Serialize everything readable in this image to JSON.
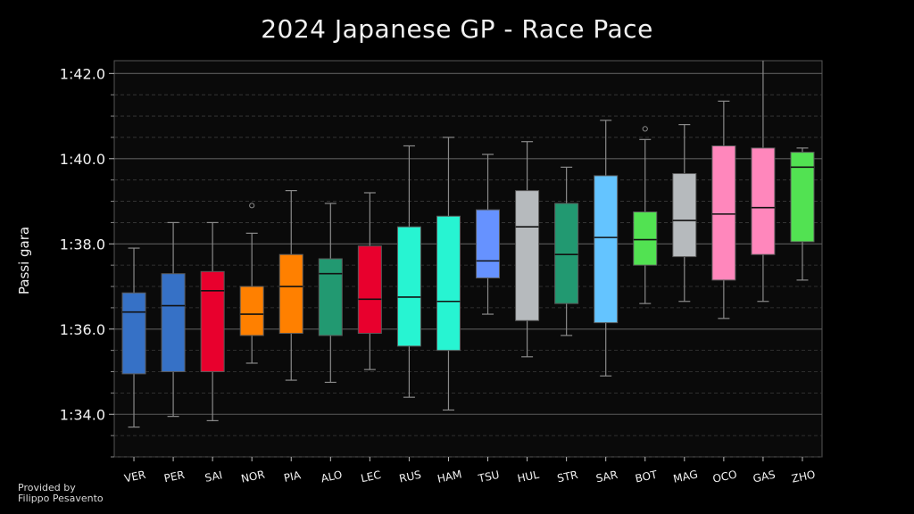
{
  "credit": {
    "line1": "Provided by",
    "line2": "Filippo Pesavento"
  },
  "chart_data": {
    "type": "box",
    "title": "2024 Japanese GP - Race Pace",
    "ylabel": "Passi gara",
    "xlabel": "",
    "ylim": [
      93.0,
      102.3
    ],
    "yticks": [
      94,
      96,
      98,
      100,
      102
    ],
    "ytick_labels": [
      "1:34.0",
      "1:36.0",
      "1:38.0",
      "1:40.0",
      "1:42.0"
    ],
    "grid": true,
    "categories": [
      "VER",
      "PER",
      "SAI",
      "NOR",
      "PIA",
      "ALO",
      "LEC",
      "RUS",
      "HAM",
      "TSU",
      "HUL",
      "STR",
      "SAR",
      "BOT",
      "MAG",
      "OCO",
      "GAS",
      "ZHO"
    ],
    "colors": [
      "#3671C6",
      "#3671C6",
      "#E8002D",
      "#FF8000",
      "#FF8000",
      "#229971",
      "#E8002D",
      "#27F4D2",
      "#27F4D2",
      "#6692FF",
      "#B6BABD",
      "#229971",
      "#64C4FF",
      "#52E252",
      "#B6BABD",
      "#FF87BC",
      "#FF87BC",
      "#52E252"
    ],
    "boxes": [
      {
        "whislo": 93.7,
        "q1": 94.95,
        "med": 96.4,
        "q3": 96.85,
        "whishi": 97.9,
        "fliers": []
      },
      {
        "whislo": 93.95,
        "q1": 95.0,
        "med": 96.55,
        "q3": 97.3,
        "whishi": 98.5,
        "fliers": []
      },
      {
        "whislo": 93.85,
        "q1": 95.0,
        "med": 96.9,
        "q3": 97.35,
        "whishi": 98.5,
        "fliers": []
      },
      {
        "whislo": 95.2,
        "q1": 95.85,
        "med": 96.35,
        "q3": 97.0,
        "whishi": 98.25,
        "fliers": [
          98.9
        ]
      },
      {
        "whislo": 94.8,
        "q1": 95.9,
        "med": 97.0,
        "q3": 97.75,
        "whishi": 99.25,
        "fliers": []
      },
      {
        "whislo": 94.75,
        "q1": 95.85,
        "med": 97.3,
        "q3": 97.65,
        "whishi": 98.95,
        "fliers": []
      },
      {
        "whislo": 95.05,
        "q1": 95.9,
        "med": 96.7,
        "q3": 97.95,
        "whishi": 99.2,
        "fliers": []
      },
      {
        "whislo": 94.4,
        "q1": 95.6,
        "med": 96.75,
        "q3": 98.4,
        "whishi": 100.3,
        "fliers": []
      },
      {
        "whislo": 94.1,
        "q1": 95.5,
        "med": 96.65,
        "q3": 98.65,
        "whishi": 100.5,
        "fliers": []
      },
      {
        "whislo": 96.35,
        "q1": 97.2,
        "med": 97.6,
        "q3": 98.8,
        "whishi": 100.1,
        "fliers": []
      },
      {
        "whislo": 95.35,
        "q1": 96.2,
        "med": 98.4,
        "q3": 99.25,
        "whishi": 100.4,
        "fliers": []
      },
      {
        "whislo": 95.85,
        "q1": 96.6,
        "med": 97.75,
        "q3": 98.95,
        "whishi": 99.8,
        "fliers": []
      },
      {
        "whislo": 94.9,
        "q1": 96.15,
        "med": 98.15,
        "q3": 99.6,
        "whishi": 100.9,
        "fliers": []
      },
      {
        "whislo": 96.6,
        "q1": 97.5,
        "med": 98.1,
        "q3": 98.75,
        "whishi": 100.45,
        "fliers": [
          100.7
        ]
      },
      {
        "whislo": 96.65,
        "q1": 97.7,
        "med": 98.55,
        "q3": 99.65,
        "whishi": 100.8,
        "fliers": []
      },
      {
        "whislo": 96.25,
        "q1": 97.15,
        "med": 98.7,
        "q3": 100.3,
        "whishi": 101.35,
        "fliers": []
      },
      {
        "whislo": 96.65,
        "q1": 97.75,
        "med": 98.85,
        "q3": 100.25,
        "whishi": 102.3,
        "fliers": []
      },
      {
        "whislo": 97.15,
        "q1": 98.05,
        "med": 99.8,
        "q3": 100.15,
        "whishi": 100.25,
        "fliers": []
      }
    ]
  }
}
